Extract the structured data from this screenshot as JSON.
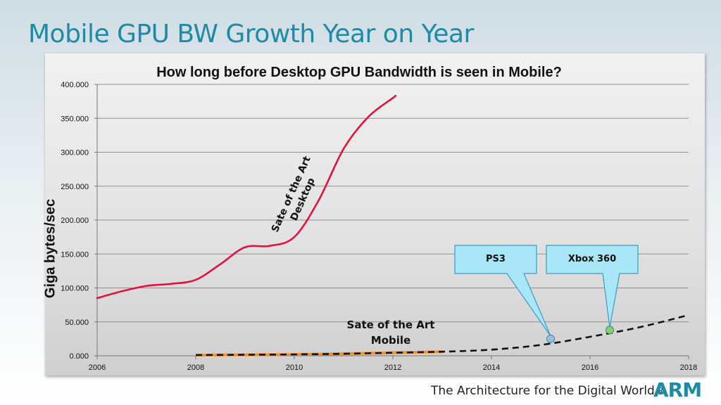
{
  "slide": {
    "title": "Mobile GPU BW Growth Year on Year",
    "footer": "The Architecture for the Digital World®",
    "logo": "ARM"
  },
  "colors": {
    "title": "#1e8aa6",
    "desktop_line": "#e0123f",
    "mobile_line": "#111111",
    "mobile_highlight": "#f0922b",
    "callout_fill": "#a8e6f8",
    "callout_border": "#3a9cc4",
    "ps3_marker": "#8fc1ea",
    "xbox_marker": "#7bd46e"
  },
  "chart_data": {
    "type": "line",
    "title": "How long before Desktop GPU Bandwidth is seen in Mobile?",
    "xlabel": "",
    "ylabel": "Giga bytes/sec",
    "xlim": [
      2006,
      2018
    ],
    "ylim": [
      0,
      400
    ],
    "x_ticks": [
      "2006",
      "2008",
      "2010",
      "2012",
      "2014",
      "2016",
      "2018"
    ],
    "y_ticks": [
      "0.000",
      "50.000",
      "100.000",
      "150.000",
      "200.000",
      "250.000",
      "300.000",
      "350.000",
      "400.000"
    ],
    "grid": true,
    "series": [
      {
        "name": "",
        "style": "solid",
        "points": [
          [
            2006,
            85
          ],
          [
            2006.5,
            95
          ],
          [
            2007,
            103
          ],
          [
            2007.5,
            106
          ],
          [
            2008,
            112
          ],
          [
            2008.5,
            135
          ],
          [
            2009,
            160
          ],
          [
            2009.5,
            162
          ],
          [
            2010,
            175
          ],
          [
            2010.5,
            230
          ],
          [
            2011,
            305
          ],
          [
            2011.5,
            352
          ],
          [
            2012,
            380
          ],
          [
            2012.05,
            383
          ]
        ]
      },
      {
        "name": "",
        "style": "dashed",
        "points": [
          [
            2008,
            1
          ],
          [
            2009,
            1.5
          ],
          [
            2010,
            2
          ],
          [
            2011,
            3
          ],
          [
            2012,
            4.5
          ],
          [
            2013,
            6
          ],
          [
            2014,
            9
          ],
          [
            2015,
            16
          ],
          [
            2016,
            28
          ],
          [
            2017,
            42
          ],
          [
            2018,
            60
          ]
        ]
      }
    ],
    "annotations": [
      {
        "text": "Sate of the Art Desktop",
        "x": 2010.5,
        "y": 255
      },
      {
        "text": "Sate of the Art Mobile",
        "x": 2012.2,
        "y": 35
      },
      {
        "text": "PS3",
        "x": 2015.2,
        "y": 25
      },
      {
        "text": "Xbox 360",
        "x": 2016.4,
        "y": 38
      }
    ]
  }
}
